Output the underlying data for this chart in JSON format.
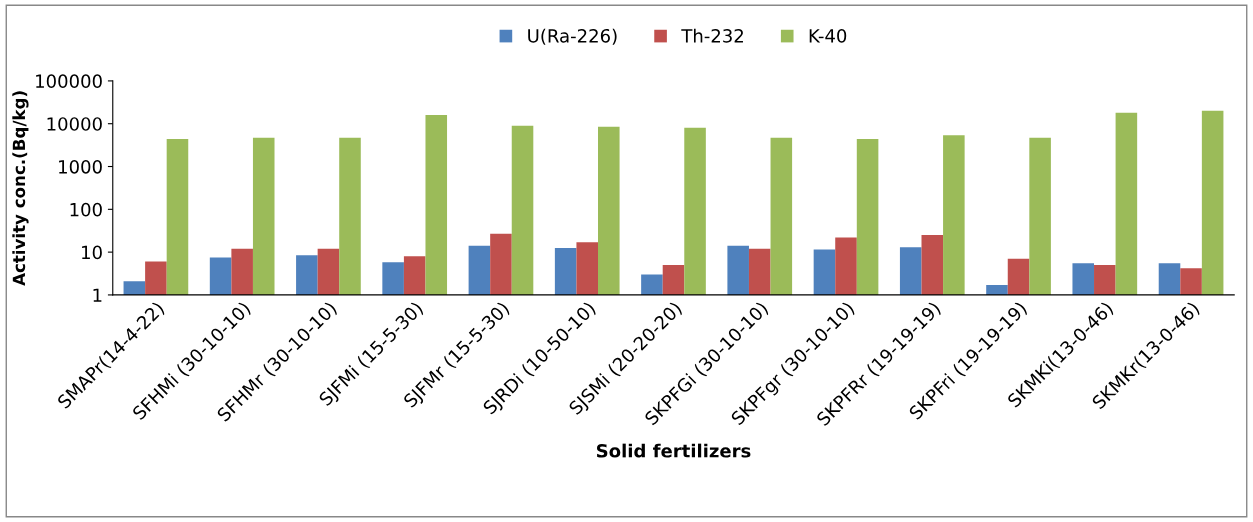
{
  "chart_data": {
    "type": "bar",
    "xlabel": "Solid fertilizers",
    "ylabel": "Activity conc.(Bq/kg)",
    "categories": [
      "SMAPr(14-4-22)",
      "SFHMi (30-10-10)",
      "SFHMr (30-10-10)",
      "SJFMi (15-5-30)",
      "SJFMr (15-5-30)",
      "SJRDi (10-50-10)",
      "SJSMi (20-20-20)",
      "SKPFGi (30-10-10)",
      "SKPFgr (30-10-10)",
      "SKPFRr (19-19-19)",
      "SKPFri (19-19-19)",
      "SKMKi(13-0-46)",
      "SKMKr(13-0-46)"
    ],
    "series": [
      {
        "name": "U(Ra-226)",
        "color": "#4f81bd",
        "values": [
          2.1,
          7.5,
          8.5,
          5.8,
          14,
          12.5,
          3,
          14,
          11.5,
          13,
          1.7,
          5.5,
          5.5
        ]
      },
      {
        "name": "Th-232",
        "color": "#c0504d",
        "values": [
          6,
          12,
          12,
          8,
          27,
          17,
          5,
          12,
          22,
          25,
          7,
          5,
          4.2
        ]
      },
      {
        "name": "K-40",
        "color": "#9bbb59",
        "values": [
          4400,
          4700,
          4700,
          16000,
          9000,
          8500,
          8000,
          4700,
          4400,
          5400,
          4700,
          18000,
          20000
        ]
      }
    ],
    "log": true,
    "ylim": [
      1,
      100000
    ],
    "yticks": [
      1,
      10,
      100,
      1000,
      10000,
      100000
    ],
    "grid": false,
    "legend": "top"
  }
}
